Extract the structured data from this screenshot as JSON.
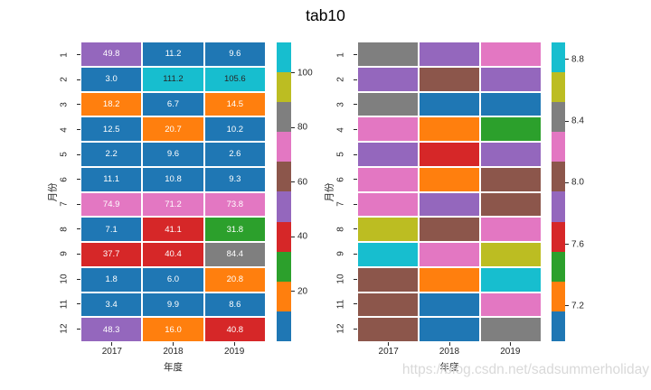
{
  "title": "tab10",
  "watermark": "https://blog.csdn.net/sadsummerholiday",
  "palette": {
    "blue": "#1f77b4",
    "orange": "#ff7f0e",
    "green": "#2ca02c",
    "red": "#d62728",
    "purple": "#9467bd",
    "brown": "#8c564b",
    "pink": "#e377c2",
    "gray": "#7f7f7f",
    "olive": "#bcbd22",
    "cyan": "#17becf",
    "order": [
      "blue",
      "orange",
      "green",
      "red",
      "purple",
      "brown",
      "pink",
      "gray",
      "olive",
      "cyan"
    ],
    "annot_light": "#ffffff",
    "annot_dark": "#262626"
  },
  "chart_data": [
    {
      "type": "heatmap",
      "colormap": "tab10",
      "xlabel": "年度",
      "ylabel": "月份",
      "categories_x": [
        "2017",
        "2018",
        "2019"
      ],
      "categories_y": [
        "1",
        "2",
        "3",
        "4",
        "5",
        "6",
        "7",
        "8",
        "9",
        "10",
        "11",
        "12"
      ],
      "annotated": true,
      "values": [
        [
          49.8,
          11.2,
          9.6
        ],
        [
          3.0,
          111.2,
          105.6
        ],
        [
          18.2,
          6.7,
          14.5
        ],
        [
          12.5,
          20.7,
          10.2
        ],
        [
          2.2,
          9.6,
          2.6
        ],
        [
          11.1,
          10.8,
          9.3
        ],
        [
          74.9,
          71.2,
          73.8
        ],
        [
          7.1,
          41.1,
          31.8
        ],
        [
          37.7,
          40.4,
          84.4
        ],
        [
          1.8,
          6.0,
          20.8
        ],
        [
          3.4,
          9.9,
          8.6
        ],
        [
          48.3,
          16.0,
          40.8
        ]
      ],
      "vmin": 1.8,
      "vmax": 111.2,
      "colorbar_ticks": [
        "20",
        "40",
        "60",
        "80",
        "100"
      ]
    },
    {
      "type": "heatmap",
      "colormap": "tab10",
      "xlabel": "年度",
      "ylabel": "月份",
      "categories_x": [
        "2017",
        "2018",
        "2019"
      ],
      "categories_y": [
        "1",
        "2",
        "3",
        "4",
        "5",
        "6",
        "7",
        "8",
        "9",
        "10",
        "11",
        "12"
      ],
      "annotated": false,
      "cell_colors": [
        [
          "gray",
          "purple",
          "pink"
        ],
        [
          "purple",
          "brown",
          "purple"
        ],
        [
          "gray",
          "blue",
          "blue"
        ],
        [
          "pink",
          "orange",
          "green"
        ],
        [
          "purple",
          "red",
          "purple"
        ],
        [
          "pink",
          "orange",
          "brown"
        ],
        [
          "pink",
          "purple",
          "brown"
        ],
        [
          "olive",
          "brown",
          "pink"
        ],
        [
          "cyan",
          "pink",
          "olive"
        ],
        [
          "brown",
          "orange",
          "cyan"
        ],
        [
          "brown",
          "blue",
          "pink"
        ],
        [
          "brown",
          "blue",
          "gray"
        ]
      ],
      "vmin": 6.97,
      "vmax": 8.91,
      "colorbar_ticks": [
        "7.2",
        "7.6",
        "8.0",
        "8.4",
        "8.8"
      ]
    }
  ]
}
